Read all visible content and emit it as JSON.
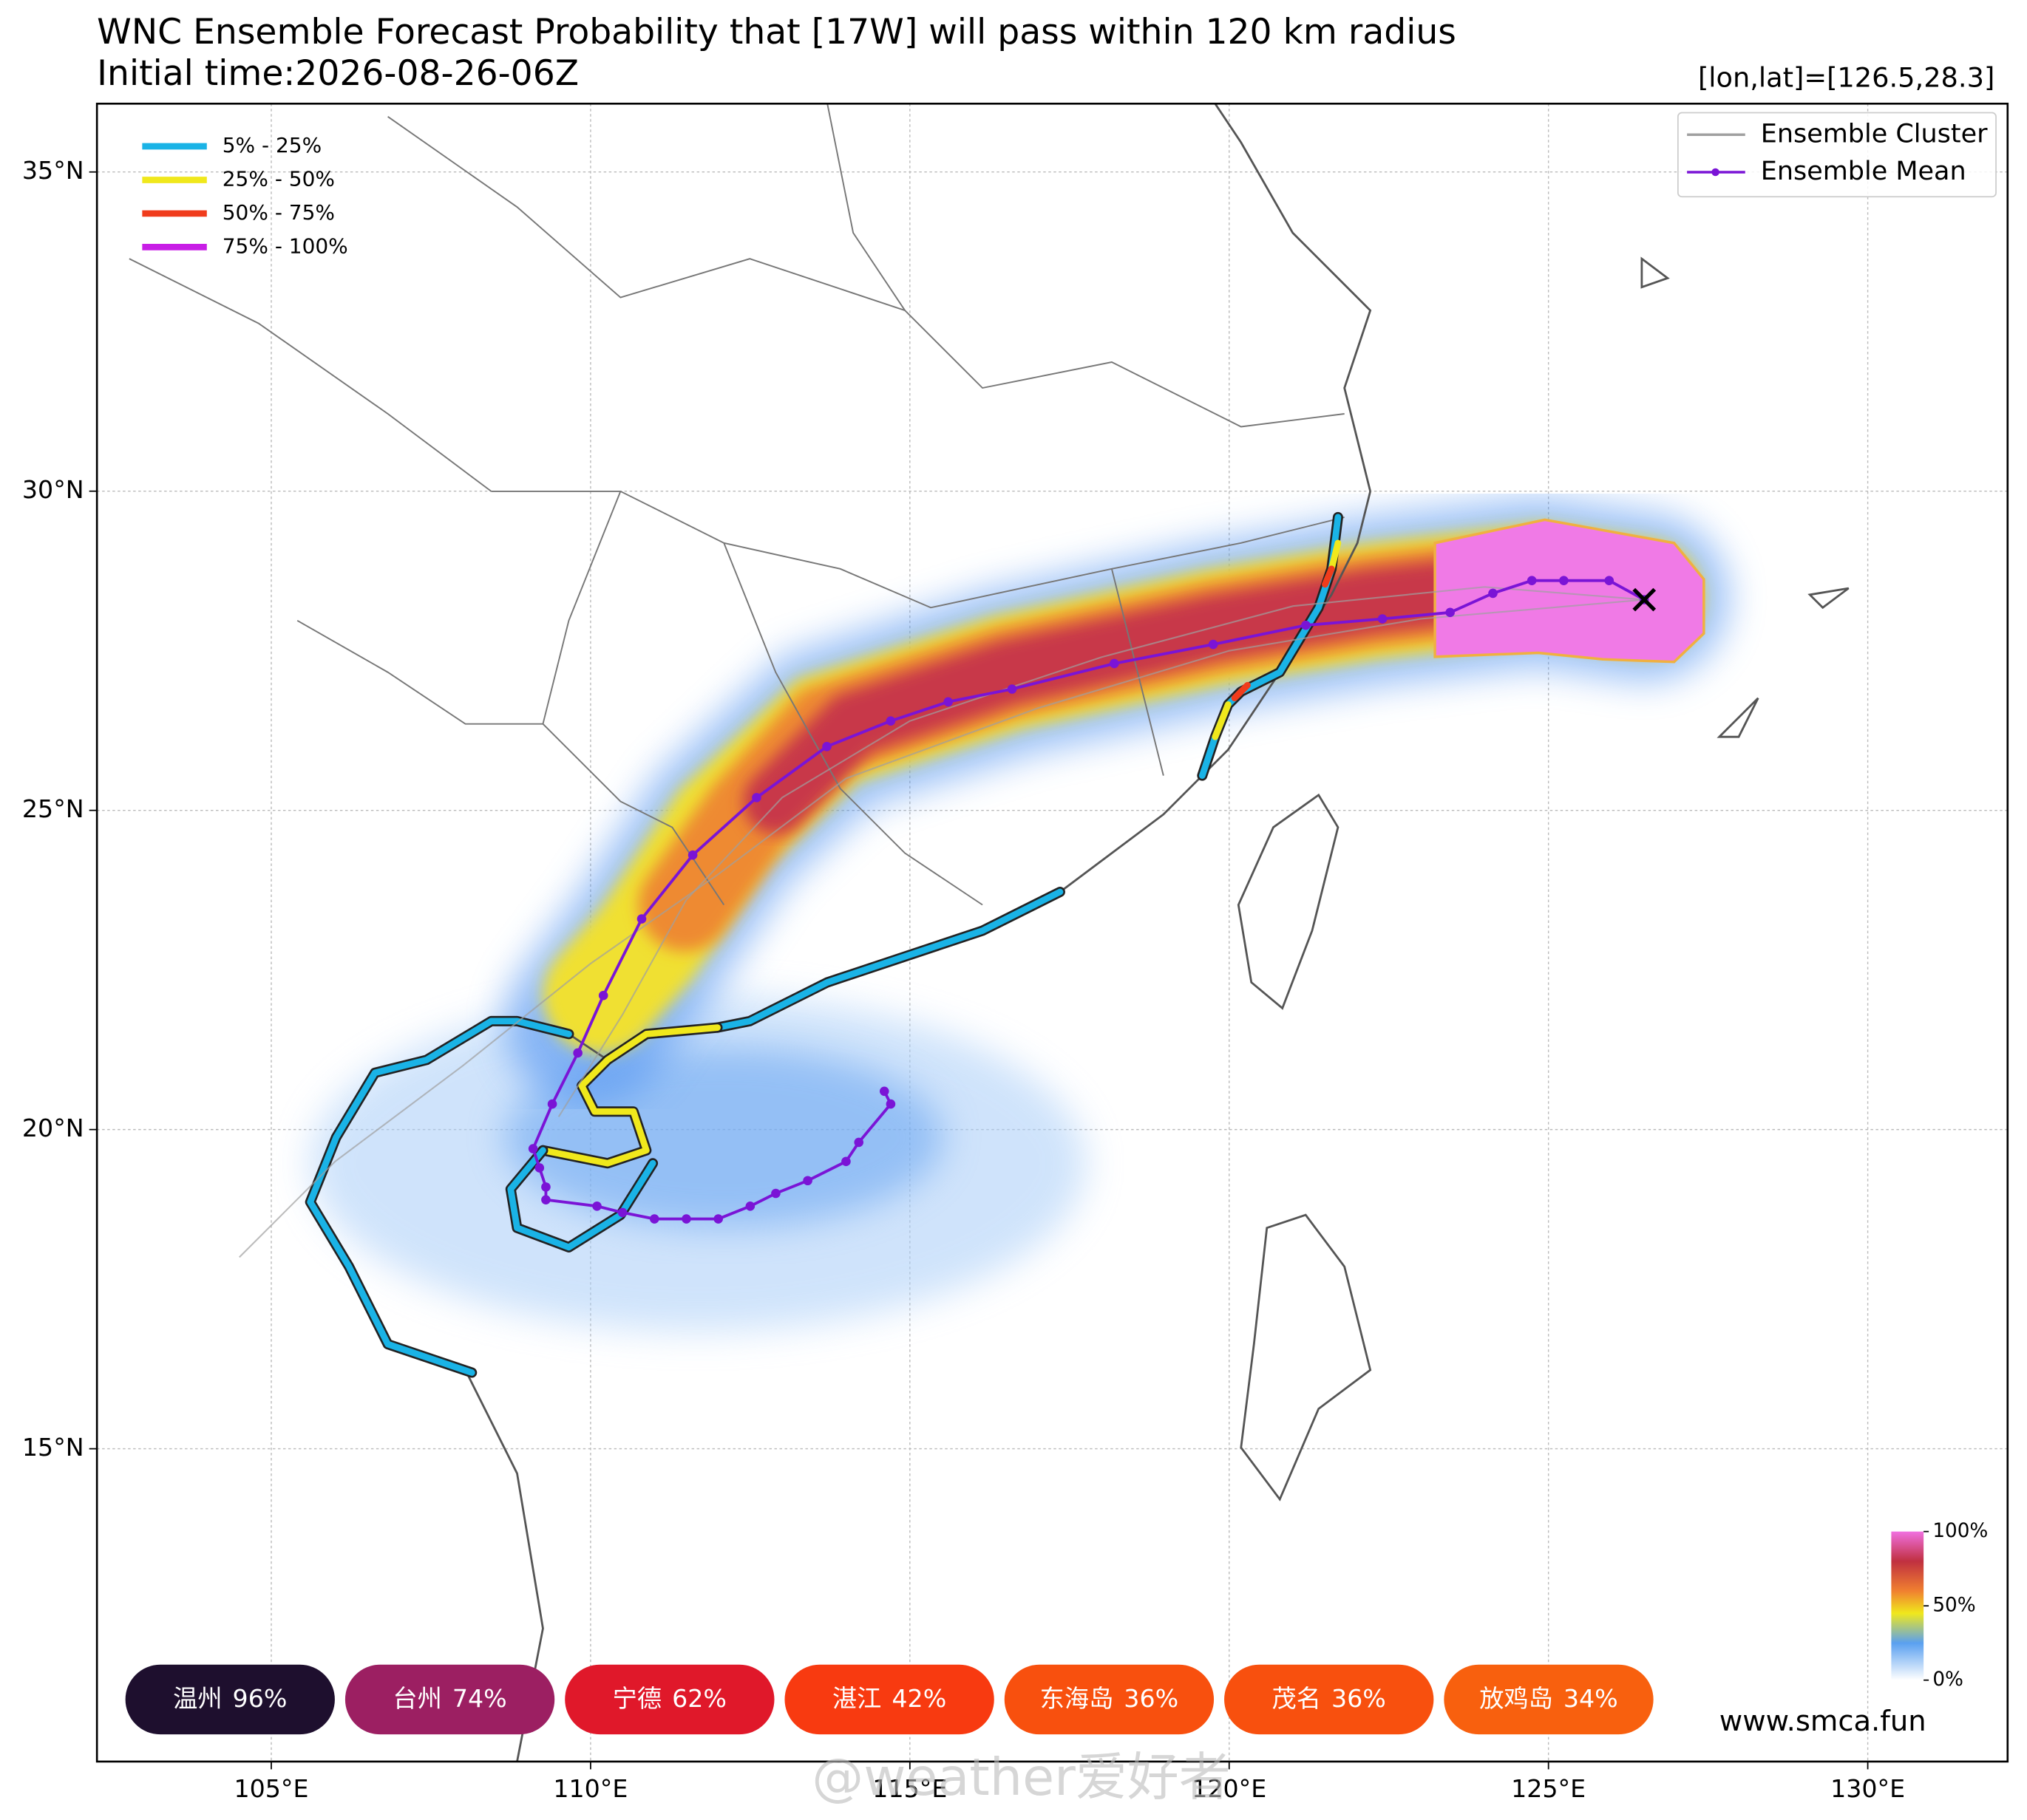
{
  "chart_data": {
    "type": "map",
    "title": "WNC Ensemble Forecast Probability that [17W] will pass within 120 km radius",
    "subtitle": "Initial time:2026-08-26-06Z",
    "position_label": "[lon,lat]=[126.5,28.3]",
    "current_position": {
      "lon": 126.5,
      "lat": 28.3
    },
    "xlim": [
      102.27,
      132.19
    ],
    "ylim": [
      10.1,
      36.07
    ],
    "xticks": [
      {
        "value": 105,
        "label": "105°E"
      },
      {
        "value": 110,
        "label": "110°E"
      },
      {
        "value": 115,
        "label": "115°E"
      },
      {
        "value": 120,
        "label": "120°E"
      },
      {
        "value": 125,
        "label": "125°E"
      },
      {
        "value": 130,
        "label": "130°E"
      }
    ],
    "yticks": [
      {
        "value": 15,
        "label": "15°N"
      },
      {
        "value": 20,
        "label": "20°N"
      },
      {
        "value": 25,
        "label": "25°N"
      },
      {
        "value": 30,
        "label": "30°N"
      },
      {
        "value": 35,
        "label": "35°N"
      }
    ],
    "grid": true,
    "legend": "upper right",
    "series": [
      {
        "name": "Ensemble Cluster",
        "color": "#a0a0a0",
        "x": [
          126.5,
          124.0,
          121.0,
          118.0,
          115.0,
          113.0,
          111.5,
          110.5,
          109.5
        ],
        "values": [
          28.3,
          28.5,
          28.2,
          27.4,
          26.4,
          25.2,
          23.6,
          21.8,
          20.2
        ]
      },
      {
        "name": null,
        "color": "#a0a0a0",
        "x": [
          126.5,
          123.0,
          120.0,
          117.0,
          114.0,
          112.0,
          110.0,
          108.0,
          106.0,
          104.5
        ],
        "values": [
          28.3,
          28.0,
          27.5,
          26.6,
          25.5,
          24.0,
          22.6,
          21.0,
          19.5,
          18.0
        ]
      },
      {
        "name": "Ensemble Mean",
        "color": "#7a14d6",
        "x": [
          126.5,
          125.95,
          125.24,
          124.74,
          124.13,
          123.46,
          122.4,
          121.2,
          119.75,
          118.2,
          116.6,
          115.6,
          114.7,
          113.7,
          112.6,
          111.6,
          110.8,
          110.2,
          109.8,
          109.4,
          109.1,
          109.2,
          109.3,
          109.3,
          110.1,
          110.5,
          111.0,
          111.5,
          112.0,
          112.5,
          112.9,
          113.4,
          114.0,
          114.2,
          114.7,
          114.6
        ],
        "values": [
          28.3,
          28.6,
          28.6,
          28.6,
          28.4,
          28.1,
          28.0,
          27.9,
          27.6,
          27.3,
          26.9,
          26.7,
          26.4,
          26.0,
          25.2,
          24.3,
          23.3,
          22.1,
          21.2,
          20.4,
          19.7,
          19.4,
          19.1,
          18.9,
          18.8,
          18.7,
          18.6,
          18.6,
          18.6,
          18.8,
          19.0,
          19.2,
          19.5,
          19.8,
          20.4,
          20.6
        ]
      }
    ],
    "probability_legend": {
      "labels": [
        "5% - 25%",
        "25% - 50%",
        "50% - 75%",
        "75% - 100%"
      ],
      "colors": [
        "#1ab3e6",
        "#f0e81c",
        "#f03c1c",
        "#c81ee6"
      ]
    },
    "colorbar": {
      "ticks": [
        {
          "value": 100,
          "label": "100%"
        },
        {
          "value": 50,
          "label": "50%"
        },
        {
          "value": 0,
          "label": "0%"
        }
      ],
      "lim": [
        0,
        100
      ]
    },
    "cities": {
      "names": [
        "温州",
        "台州",
        "宁德",
        "湛江",
        "东海岛",
        "茂名",
        "放鸡岛"
      ],
      "values": [
        96,
        74,
        62,
        42,
        36,
        36,
        34
      ],
      "value_labels": [
        "96%",
        "74%",
        "62%",
        "42%",
        "36%",
        "36%",
        "34%"
      ],
      "colors": [
        "#1e0f2e",
        "#9c1f62",
        "#e0182a",
        "#f83a10",
        "#f8500e",
        "#f8500e",
        "#f8600e"
      ]
    },
    "website": "www.smca.fun",
    "watermark": "@weather爱好者"
  }
}
